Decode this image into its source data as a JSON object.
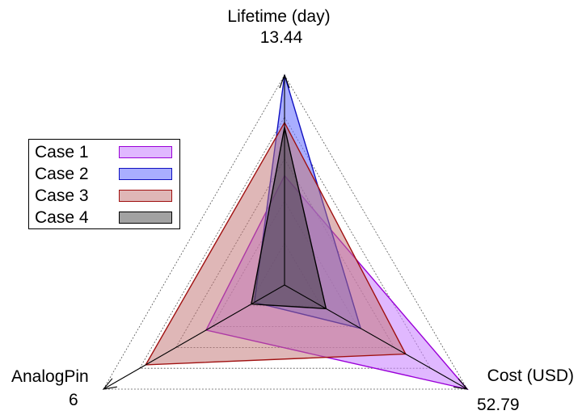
{
  "chart_data": {
    "type": "radar",
    "axes": [
      {
        "name": "Lifetime (day)",
        "max_label": "13.44",
        "max": 13.44
      },
      {
        "name": "Cost (USD)",
        "max_label": "52.79",
        "max": 52.79
      },
      {
        "name": "AnalogPin",
        "max_label": "6",
        "max": 6
      }
    ],
    "series": [
      {
        "name": "Case 1",
        "values": [
          7.0,
          52.79,
          2.6
        ],
        "fill": "#cc88ff",
        "stroke": "#9a00d8",
        "fill_opacity": 0.6
      },
      {
        "name": "Case 2",
        "values": [
          13.44,
          22.0,
          1.0
        ],
        "fill": "#6f78ff",
        "stroke": "#1010c0",
        "fill_opacity": 0.6
      },
      {
        "name": "Case 3",
        "values": [
          10.4,
          35.0,
          4.6
        ],
        "fill": "#c07070",
        "stroke": "#a01010",
        "fill_opacity": 0.5
      },
      {
        "name": "Case 4",
        "values": [
          10.1,
          12.0,
          1.1
        ],
        "fill": "#303030",
        "stroke": "#000000",
        "fill_opacity": 0.45
      }
    ],
    "grid": true,
    "grid_levels": 5,
    "legend_position": "left"
  },
  "colors": {
    "case1": "#cc88ff",
    "case2": "#6f78ff",
    "case3": "#c07070",
    "case4": "#303030"
  }
}
